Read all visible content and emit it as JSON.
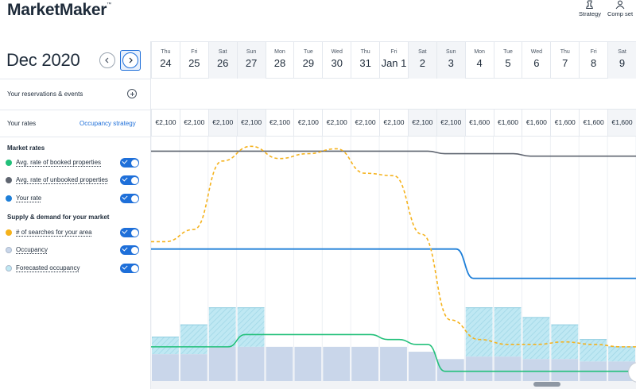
{
  "app": {
    "logo": "MarketMaker",
    "logo_mark": "™"
  },
  "toolbar": {
    "strategy_label": "Strategy",
    "compset_label": "Comp set"
  },
  "calendar": {
    "month_label": "Dec 2020",
    "days": [
      {
        "dow": "Thu",
        "num": "24",
        "weekend": false
      },
      {
        "dow": "Fri",
        "num": "25",
        "weekend": false
      },
      {
        "dow": "Sat",
        "num": "26",
        "weekend": true
      },
      {
        "dow": "Sun",
        "num": "27",
        "weekend": true
      },
      {
        "dow": "Mon",
        "num": "28",
        "weekend": false
      },
      {
        "dow": "Tue",
        "num": "29",
        "weekend": false
      },
      {
        "dow": "Wed",
        "num": "30",
        "weekend": false
      },
      {
        "dow": "Thu",
        "num": "31",
        "weekend": false
      },
      {
        "dow": "Fri",
        "num": "Jan 1",
        "weekend": false
      },
      {
        "dow": "Sat",
        "num": "2",
        "weekend": true
      },
      {
        "dow": "Sun",
        "num": "3",
        "weekend": true
      },
      {
        "dow": "Mon",
        "num": "4",
        "weekend": false
      },
      {
        "dow": "Tue",
        "num": "5",
        "weekend": false
      },
      {
        "dow": "Wed",
        "num": "6",
        "weekend": false
      },
      {
        "dow": "Thu",
        "num": "7",
        "weekend": false
      },
      {
        "dow": "Fri",
        "num": "8",
        "weekend": false
      },
      {
        "dow": "Sat",
        "num": "9",
        "weekend": true
      }
    ]
  },
  "rows": {
    "reservations_label": "Your reservations & events",
    "rates_label": "Your rates",
    "occupancy_strategy_label": "Occupancy strategy",
    "rates": [
      "€2,100",
      "€2,100",
      "€2,100",
      "€2,100",
      "€2,100",
      "€2,100",
      "€2,100",
      "€2,100",
      "€2,100",
      "€2,100",
      "€2,100",
      "€1,600",
      "€1,600",
      "€1,600",
      "€1,600",
      "€1,600",
      "€1,600"
    ]
  },
  "legend": {
    "market_rates_title": "Market rates",
    "supply_demand_title": "Supply & demand for your market",
    "items": [
      {
        "label": "Avg. rate of booked properties",
        "color": "#22c07a",
        "enabled": true
      },
      {
        "label": "Avg. rate of unbooked properties",
        "color": "#5f6570",
        "enabled": true
      },
      {
        "label": "Your rate",
        "color": "#1e7fd8",
        "enabled": true
      },
      {
        "label": "# of searches for your area",
        "color": "#f5b21c",
        "enabled": true
      },
      {
        "label": "Occupancy",
        "color": "#c9d6ea",
        "enabled": true
      },
      {
        "label": "Forecasted occupancy",
        "color": "#bfe8f3",
        "enabled": true
      }
    ]
  },
  "chart_data": {
    "type": "line",
    "x": [
      "24",
      "25",
      "26",
      "27",
      "28",
      "29",
      "30",
      "31",
      "Jan 1",
      "2",
      "3",
      "4",
      "5",
      "6",
      "7",
      "8",
      "9"
    ],
    "ylim": [
      0,
      100
    ],
    "series": [
      {
        "name": "Avg. rate of booked properties",
        "color": "#22c07a",
        "values": [
          14,
          14,
          14,
          19,
          19,
          19,
          19,
          19,
          17,
          15,
          4,
          4,
          4,
          4,
          4,
          4,
          4
        ]
      },
      {
        "name": "Avg. rate of unbooked properties",
        "color": "#5f6570",
        "values": [
          94,
          94,
          94,
          94,
          94,
          94,
          94,
          94,
          94,
          94,
          93,
          93,
          93,
          92,
          92,
          92,
          92
        ]
      },
      {
        "name": "Your rate",
        "color": "#1e7fd8",
        "values": [
          54,
          54,
          54,
          54,
          54,
          54,
          54,
          54,
          54,
          54,
          54,
          42,
          42,
          42,
          42,
          42,
          42
        ]
      },
      {
        "name": "# of searches for your area",
        "color": "#f5b21c",
        "values": [
          57,
          62,
          90,
          96,
          91,
          93,
          95,
          85,
          84,
          60,
          25,
          17,
          15,
          15,
          16,
          15,
          14
        ]
      },
      {
        "name": "Occupancy",
        "color": "#c9d6ea",
        "values": [
          11,
          11,
          14,
          14,
          14,
          14,
          14,
          14,
          14,
          12,
          9,
          10,
          10,
          9,
          9,
          8,
          8
        ]
      },
      {
        "name": "Forecasted occupancy",
        "color": "#bfe8f3",
        "values": [
          18,
          23,
          30,
          30,
          14,
          14,
          14,
          14,
          14,
          12,
          9,
          30,
          30,
          26,
          23,
          17,
          14
        ]
      }
    ]
  }
}
